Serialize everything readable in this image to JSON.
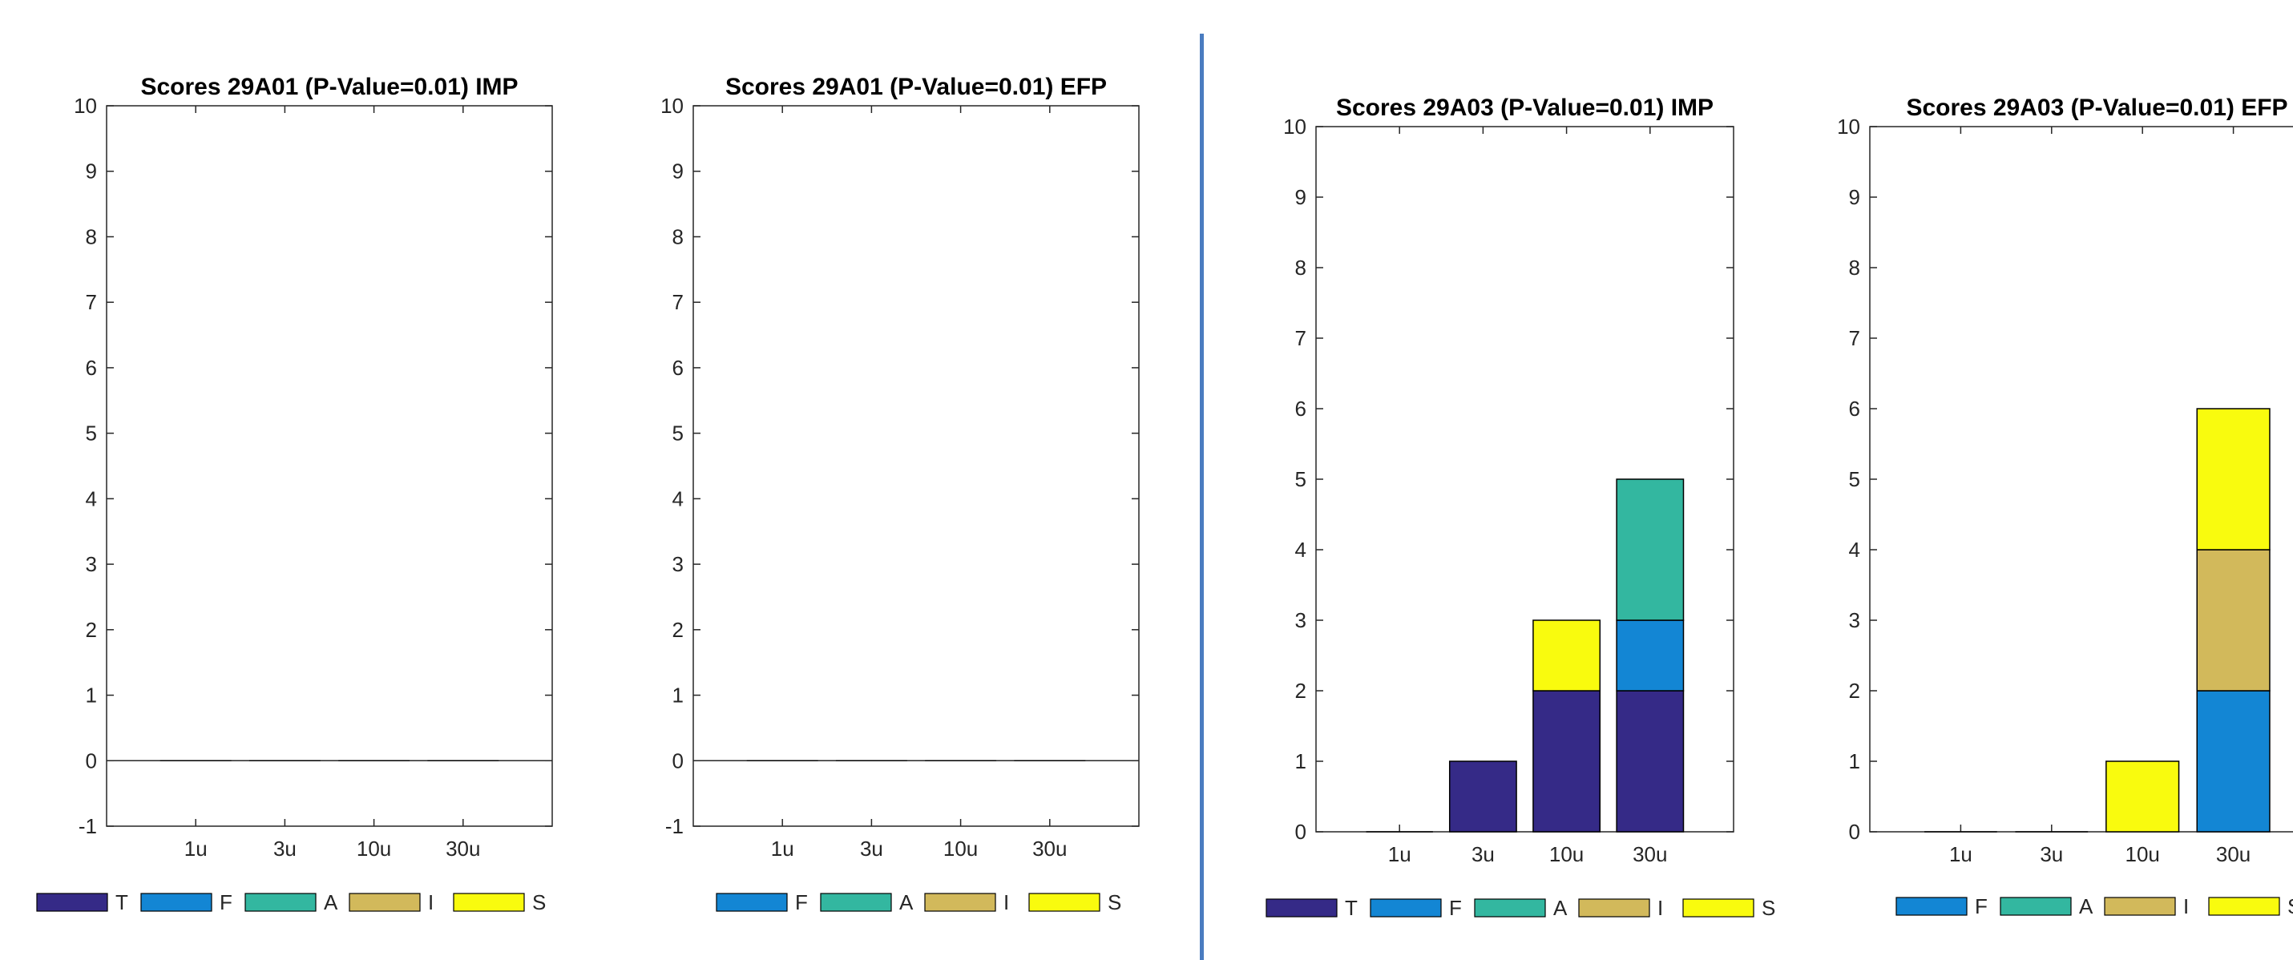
{
  "chart_data": [
    {
      "type": "bar",
      "stacked": true,
      "title": "Scores 29A01 (P-Value=0.01) IMP",
      "categories": [
        "1u",
        "3u",
        "10u",
        "30u"
      ],
      "ylim": [
        -1,
        10
      ],
      "yticks": [
        "-1",
        "0",
        "1",
        "2",
        "3",
        "4",
        "5",
        "6",
        "7",
        "8",
        "9",
        "10"
      ],
      "grid": false,
      "legend_position": "bottom",
      "series": [
        {
          "name": "T",
          "color": "#352a87",
          "values": [
            0,
            0,
            0,
            0
          ]
        },
        {
          "name": "F",
          "color": "#1386d4",
          "values": [
            0,
            0,
            0,
            0
          ]
        },
        {
          "name": "A",
          "color": "#33b7a0",
          "values": [
            0,
            0,
            0,
            0
          ]
        },
        {
          "name": "I",
          "color": "#d2b95b",
          "values": [
            0,
            0,
            0,
            0
          ]
        },
        {
          "name": "S",
          "color": "#f9fb0e",
          "values": [
            0,
            0,
            0,
            0
          ]
        }
      ]
    },
    {
      "type": "bar",
      "stacked": true,
      "title": "Scores 29A01 (P-Value=0.01) EFP",
      "categories": [
        "1u",
        "3u",
        "10u",
        "30u"
      ],
      "ylim": [
        -1,
        10
      ],
      "yticks": [
        "-1",
        "0",
        "1",
        "2",
        "3",
        "4",
        "5",
        "6",
        "7",
        "8",
        "9",
        "10"
      ],
      "grid": false,
      "legend_position": "bottom",
      "series": [
        {
          "name": "F",
          "color": "#1386d4",
          "values": [
            0,
            0,
            0,
            0
          ]
        },
        {
          "name": "A",
          "color": "#33b7a0",
          "values": [
            0,
            0,
            0,
            0
          ]
        },
        {
          "name": "I",
          "color": "#d2b95b",
          "values": [
            0,
            0,
            0,
            0
          ]
        },
        {
          "name": "S",
          "color": "#f9fb0e",
          "values": [
            0,
            0,
            0,
            0
          ]
        }
      ]
    },
    {
      "type": "bar",
      "stacked": true,
      "title": "Scores 29A03 (P-Value=0.01) IMP",
      "categories": [
        "1u",
        "3u",
        "10u",
        "30u"
      ],
      "ylim": [
        0,
        10
      ],
      "yticks": [
        "0",
        "1",
        "2",
        "3",
        "4",
        "5",
        "6",
        "7",
        "8",
        "9",
        "10"
      ],
      "grid": false,
      "legend_position": "bottom",
      "series": [
        {
          "name": "T",
          "color": "#352a87",
          "values": [
            0,
            1,
            2,
            2
          ]
        },
        {
          "name": "F",
          "color": "#1386d4",
          "values": [
            0,
            0,
            0,
            1
          ]
        },
        {
          "name": "A",
          "color": "#33b7a0",
          "values": [
            0,
            0,
            0,
            2
          ]
        },
        {
          "name": "I",
          "color": "#d2b95b",
          "values": [
            0,
            0,
            0,
            0
          ]
        },
        {
          "name": "S",
          "color": "#f9fb0e",
          "values": [
            0,
            0,
            1,
            0
          ]
        }
      ]
    },
    {
      "type": "bar",
      "stacked": true,
      "title": "Scores 29A03 (P-Value=0.01) EFP",
      "categories": [
        "1u",
        "3u",
        "10u",
        "30u"
      ],
      "ylim": [
        0,
        10
      ],
      "yticks": [
        "0",
        "1",
        "2",
        "3",
        "4",
        "5",
        "6",
        "7",
        "8",
        "9",
        "10"
      ],
      "grid": false,
      "legend_position": "bottom",
      "series": [
        {
          "name": "F",
          "color": "#1386d4",
          "values": [
            0,
            0,
            0,
            2
          ]
        },
        {
          "name": "A",
          "color": "#33b7a0",
          "values": [
            0,
            0,
            0,
            0
          ]
        },
        {
          "name": "I",
          "color": "#d2b95b",
          "values": [
            0,
            0,
            0,
            2
          ]
        },
        {
          "name": "S",
          "color": "#f9fb0e",
          "values": [
            0,
            0,
            1,
            2
          ]
        }
      ]
    }
  ]
}
